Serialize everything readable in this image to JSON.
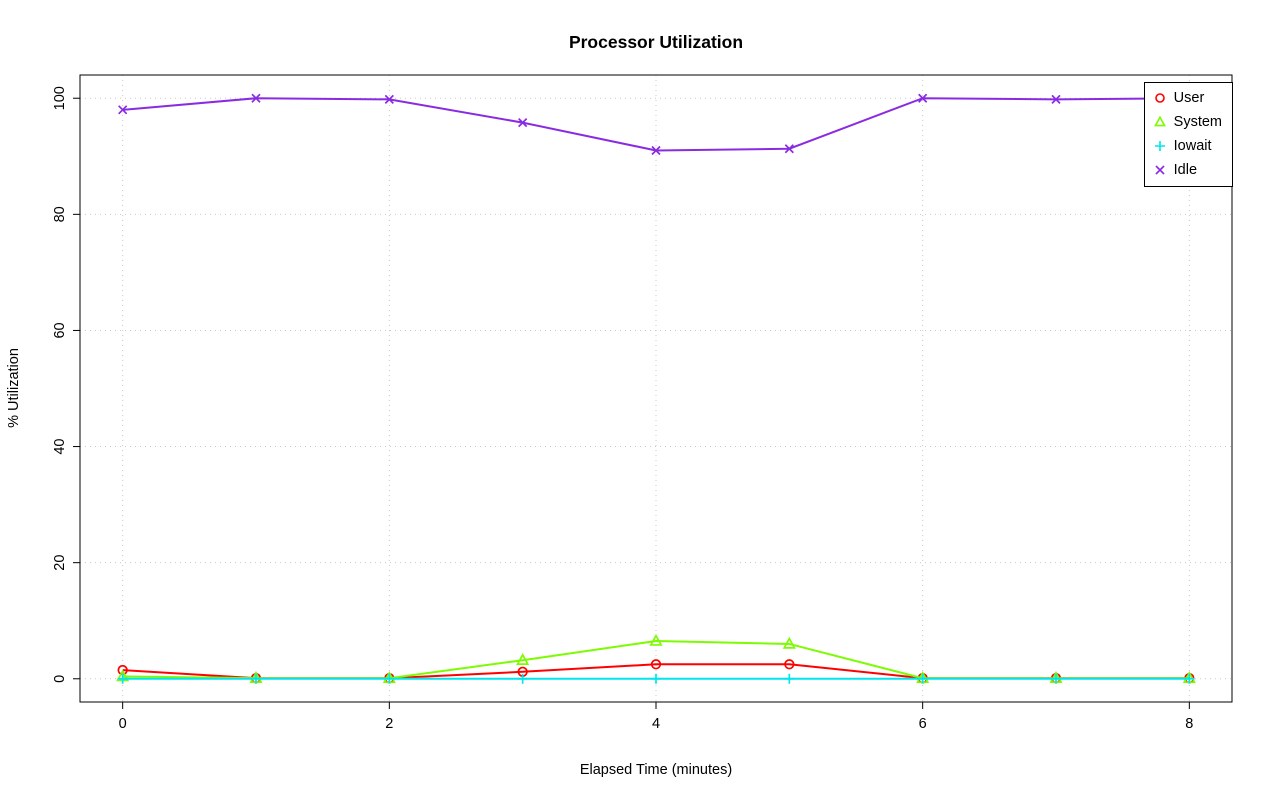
{
  "chart_data": {
    "type": "line",
    "title": "Processor Utilization",
    "xlabel": "Elapsed Time (minutes)",
    "ylabel": "% Utilization",
    "x": [
      0,
      1,
      2,
      3,
      4,
      5,
      6,
      7,
      8
    ],
    "xticks": [
      0,
      2,
      4,
      6,
      8
    ],
    "yticks": [
      0,
      20,
      40,
      60,
      80,
      100
    ],
    "xlim": [
      0,
      8
    ],
    "ylim": [
      0,
      100
    ],
    "grid": true,
    "grid_style": "dotted",
    "grid_color": "#c8c8c8",
    "legend_position": "top-right",
    "series": [
      {
        "name": "User",
        "color": "#ff0000",
        "marker": "circle",
        "values": [
          1.5,
          0.1,
          0.1,
          1.2,
          2.5,
          2.5,
          0.1,
          0.1,
          0.1
        ]
      },
      {
        "name": "System",
        "color": "#7cfc00",
        "marker": "triangle",
        "values": [
          0.4,
          0.1,
          0.1,
          3.2,
          6.5,
          6.0,
          0.1,
          0.1,
          0.1
        ]
      },
      {
        "name": "Iowait",
        "color": "#00e5ee",
        "marker": "plus",
        "values": [
          0,
          0,
          0,
          0,
          0,
          0,
          0,
          0,
          0
        ]
      },
      {
        "name": "Idle",
        "color": "#8a2be2",
        "marker": "x",
        "values": [
          98,
          100,
          99.8,
          95.8,
          91,
          91.3,
          100,
          99.8,
          100
        ]
      }
    ]
  }
}
